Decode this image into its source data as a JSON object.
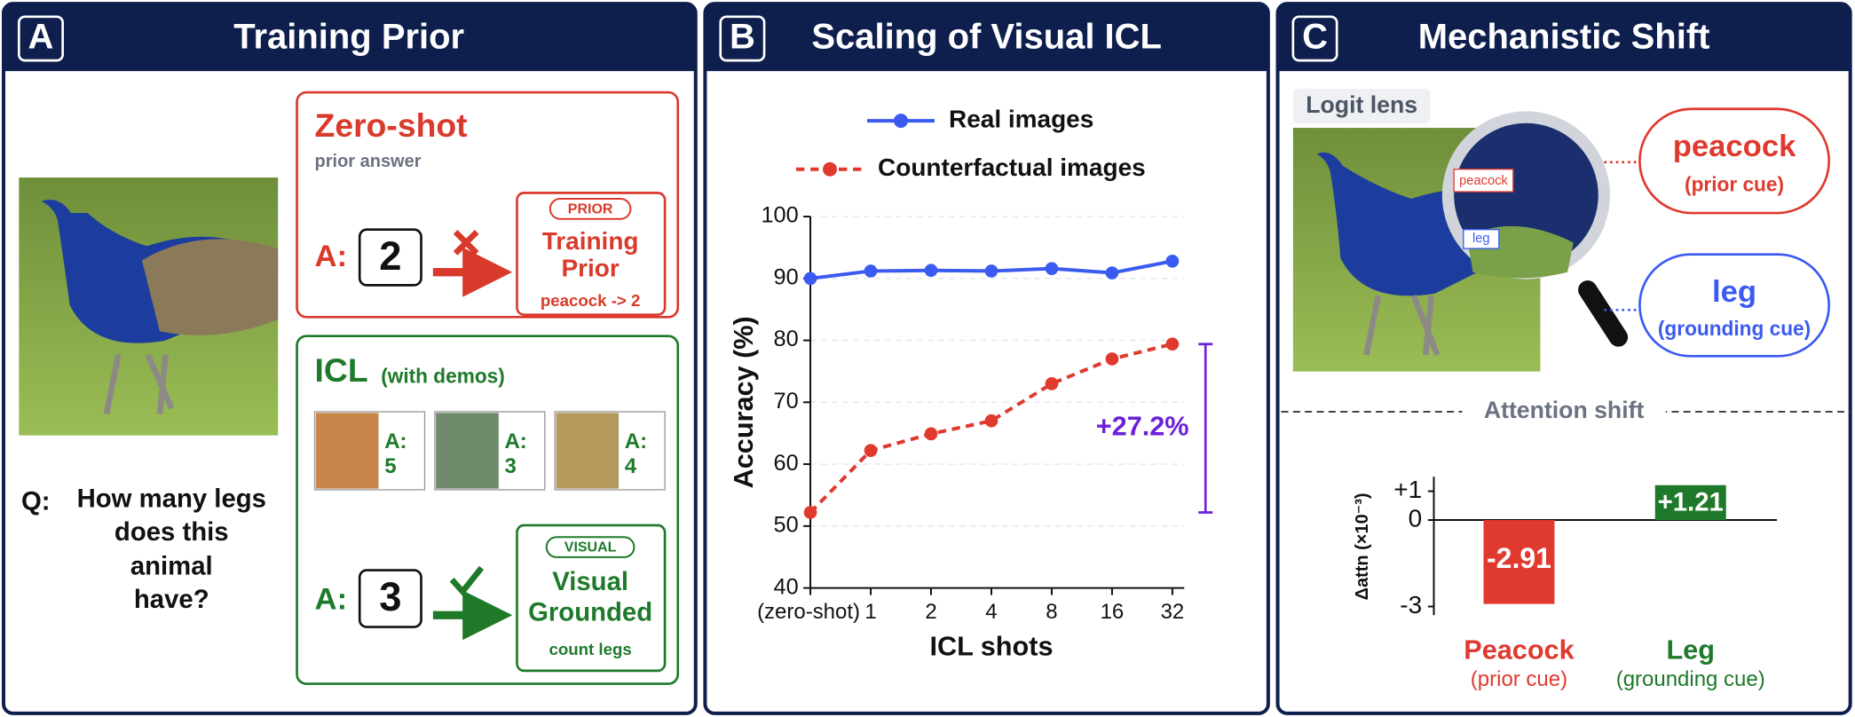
{
  "panels": [
    {
      "letter": "A",
      "title": "Training Prior"
    },
    {
      "letter": "B",
      "title": "Scaling of Visual ICL"
    },
    {
      "letter": "C",
      "title": "Mechanistic Shift"
    }
  ],
  "training_prior": {
    "zero_shot": {
      "title": "Zero-shot",
      "subtitle": "prior answer",
      "answer_label": "A:",
      "answer": "2",
      "badge": "PRIOR",
      "result": [
        "Training",
        "Prior"
      ],
      "rule": "peacock -> 2"
    },
    "icl": {
      "title": "ICL",
      "title_note": "(with demos)",
      "demos": [
        {
          "label": "A:",
          "answer": "5"
        },
        {
          "label": "A:",
          "answer": "3"
        },
        {
          "label": "A:",
          "answer": "4"
        }
      ],
      "answer_label": "A:",
      "answer": "3",
      "badge": "VISUAL",
      "result": [
        "Visual",
        "Grounded"
      ],
      "rule": "count legs"
    },
    "question": {
      "label": "Q:",
      "lines": [
        "How many legs",
        "does this",
        "animal",
        "have?"
      ]
    }
  },
  "mechanistic_shift": {
    "logit_lens": "Logit lens",
    "lens_tags": [
      "peacock",
      "leg"
    ],
    "cues": [
      {
        "word": "peacock",
        "note": "(prior cue)"
      },
      {
        "word": "leg",
        "note": "(grounding cue)"
      }
    ],
    "divider": "Attention shift"
  },
  "chart_data": [
    {
      "type": "line",
      "xlabel": "ICL shots",
      "ylabel": "Accuracy (%)",
      "categories": [
        "(zero-shot)",
        "1",
        "2",
        "4",
        "8",
        "16",
        "32"
      ],
      "series": [
        {
          "name": "Real images",
          "color": "#3b5bf0",
          "values": [
            90,
            91.2,
            91.3,
            91.2,
            91.6,
            90.9,
            92.8
          ]
        },
        {
          "name": "Counterfactual images",
          "color": "#e03a2f",
          "dashed": true,
          "values": [
            52.2,
            62.2,
            64.9,
            67,
            73,
            77,
            79.4
          ]
        }
      ],
      "ylim": [
        40,
        100
      ],
      "yticks": [
        40,
        50,
        60,
        70,
        80,
        90,
        100
      ],
      "grid": true,
      "annotation": {
        "text": "+27.2%",
        "color": "#6b21d9"
      }
    },
    {
      "type": "bar",
      "ylabel": "Δattn (×10⁻³)",
      "categories": [
        "Peacock",
        "Leg"
      ],
      "category_notes": [
        "(prior cue)",
        "(grounding cue)"
      ],
      "values": [
        -2.91,
        1.21
      ],
      "value_labels": [
        "-2.91",
        "+1.21"
      ],
      "colors": [
        "#e03a2f",
        "#1e7a2a"
      ],
      "ylim": [
        -3.3,
        1.5
      ],
      "yticks": [
        {
          "value": 1,
          "label": "+1"
        },
        0,
        -3
      ]
    }
  ]
}
